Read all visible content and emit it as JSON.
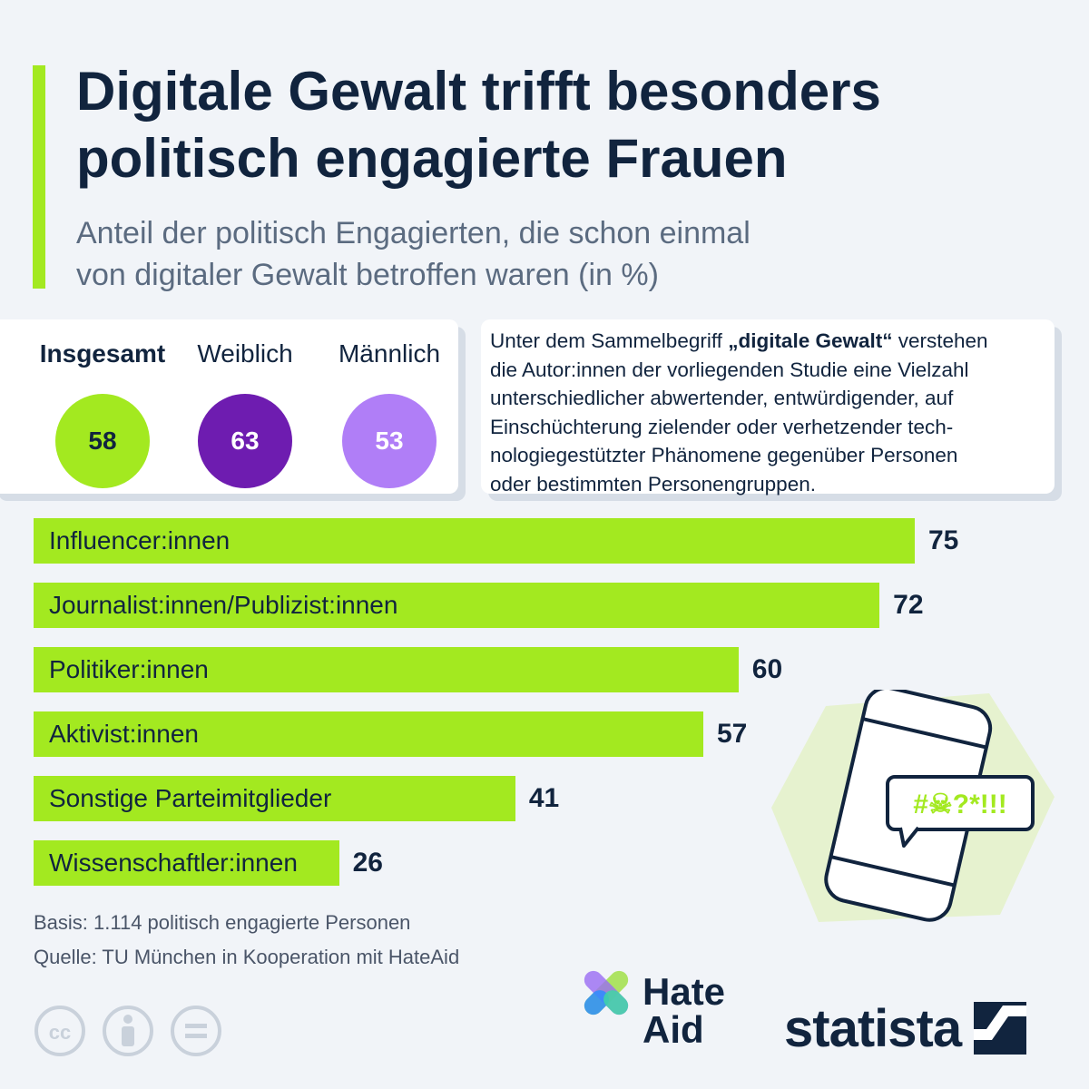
{
  "header": {
    "title_lines": [
      "Digitale Gewalt trifft besonders",
      "politisch engagierte Frauen"
    ],
    "subtitle_lines": [
      "Anteil der politisch Engagierten, die schon einmal",
      "von digitaler Gewalt betroffen waren (in %)"
    ]
  },
  "summary": {
    "items": [
      {
        "label": "Insgesamt",
        "value": 58,
        "color": "#a3e920",
        "text_color": "#11243e"
      },
      {
        "label": "Weiblich",
        "value": 63,
        "color": "#6e1cb0",
        "text_color": "#ffffff"
      },
      {
        "label": "Männlich",
        "value": 53,
        "color": "#b07ef7",
        "text_color": "#ffffff"
      }
    ]
  },
  "definition": {
    "pre": "Unter dem Sammelbegriff ",
    "term": "„digitale Gewalt“",
    "post": " verstehen",
    "lines": [
      "die Autor:innen der vorliegenden Studie eine Vielzahl",
      "unterschiedlicher abwertender, entwürdigender, auf",
      "Einschüchterung zielender oder verhetzender tech-",
      "nologiegestützter Phänomene gegenüber Personen",
      "oder bestimmten Personengruppen."
    ]
  },
  "chart_data": {
    "type": "bar",
    "orientation": "horizontal",
    "categories": [
      "Influencer:innen",
      "Journalist:innen/Publizist:innen",
      "Politiker:innen",
      "Aktivist:innen",
      "Sonstige Parteimitglieder",
      "Wissenschaftler:innen"
    ],
    "values": [
      75,
      72,
      60,
      57,
      41,
      26
    ],
    "unit": "%",
    "bar_color": "#a3e920",
    "title": "Digitale Gewalt trifft besonders politisch engagierte Frauen",
    "subtitle": "Anteil der politisch Engagierten, die schon einmal von digitaler Gewalt betroffen waren (in %)",
    "xlim": [
      0,
      75
    ],
    "grid": false,
    "data_labels": true
  },
  "notes": {
    "basis": "Basis: 1.114 politisch engagierte Personen",
    "source": "Quelle: TU München in Kooperation mit HateAid"
  },
  "illustration": {
    "bubble_text": "#☠?*!!!"
  },
  "logos": {
    "hateaid_lines": [
      "Hate",
      "Aid"
    ],
    "statista": "statista"
  },
  "colors": {
    "accent": "#a3e920",
    "navy": "#11243e",
    "background": "#f1f4f8"
  }
}
